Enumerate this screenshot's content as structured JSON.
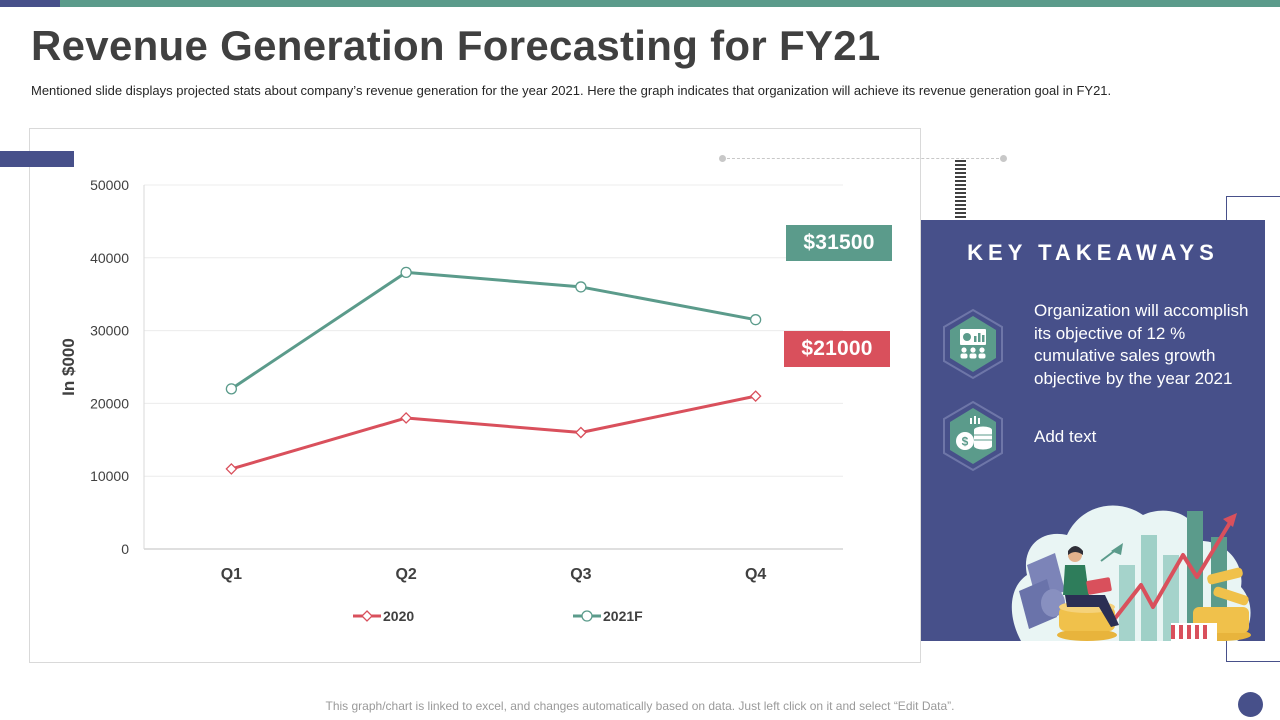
{
  "header": {
    "title": "Revenue Generation Forecasting for FY21",
    "subtitle": "Mentioned slide displays projected stats about company’s revenue generation for the year 2021.  Here the graph indicates that organization will achieve its revenue generation goal in FY21."
  },
  "chart_data": {
    "type": "line",
    "title": "",
    "categories": [
      "Q1",
      "Q2",
      "Q3",
      "Q4"
    ],
    "series": [
      {
        "name": "2020",
        "values": [
          11000,
          18000,
          16000,
          21000
        ],
        "color": "#d9505c",
        "marker": "diamond"
      },
      {
        "name": "2021F",
        "values": [
          22000,
          38000,
          36000,
          31500
        ],
        "color": "#5b9b8b",
        "marker": "circle"
      }
    ],
    "xlabel": "",
    "ylabel": "In $000",
    "ylim": [
      0,
      50000
    ],
    "yticks": [
      0,
      10000,
      20000,
      30000,
      40000,
      50000
    ],
    "grid": true,
    "legend": "bottom"
  },
  "badges": {
    "forecast_value": "$31500",
    "actual_value": "$21000"
  },
  "takeaways": {
    "title": "KEY TAKEAWAYS",
    "items": [
      {
        "text": "Organization will accomplish its objective of 12 % cumulative sales growth objective by the year 2021",
        "icon": "presentation-icon"
      },
      {
        "text": "Add text",
        "icon": "coins-icon"
      }
    ]
  },
  "footer": {
    "note": "This graph/chart is linked to excel, and changes automatically based on data. Just left click on it and select “Edit Data”."
  },
  "colors": {
    "accent_teal": "#5b9b8b",
    "accent_red": "#d9505c",
    "brand_navy": "#47508a"
  }
}
